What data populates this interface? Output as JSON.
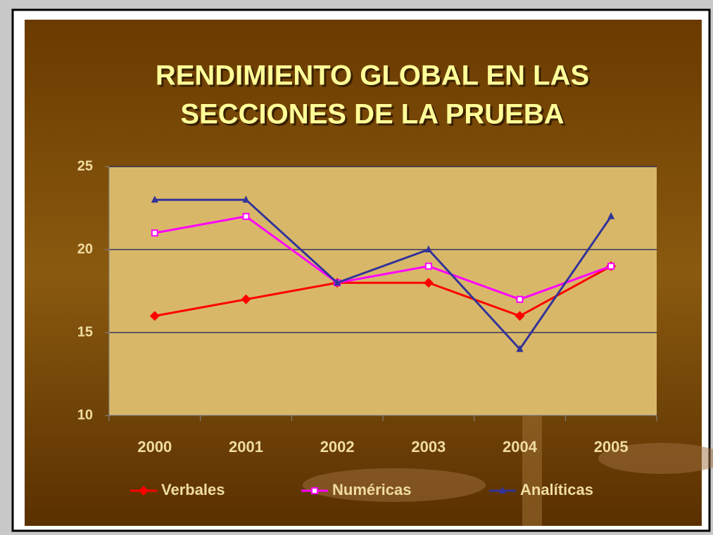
{
  "chart_data": {
    "type": "line",
    "title": [
      "RENDIMIENTO GLOBAL EN LAS",
      "SECCIONES DE LA PRUEBA"
    ],
    "categories": [
      "2000",
      "2001",
      "2002",
      "2003",
      "2004",
      "2005"
    ],
    "series": [
      {
        "name": "Verbales",
        "color": "#ff0000",
        "marker": "diamond",
        "values": [
          16,
          17,
          18,
          18,
          16,
          19
        ]
      },
      {
        "name": "Numéricas",
        "color": "#ff00ff",
        "marker": "square",
        "values": [
          21,
          22,
          18,
          19,
          17,
          19
        ]
      },
      {
        "name": "Analíticas",
        "color": "#333399",
        "marker": "triangle",
        "values": [
          23,
          23,
          18,
          20,
          14,
          22
        ]
      }
    ],
    "ylim": [
      10,
      25
    ],
    "yticks": [
      10,
      15,
      20,
      25
    ],
    "grid": true,
    "legend": "bottom"
  }
}
